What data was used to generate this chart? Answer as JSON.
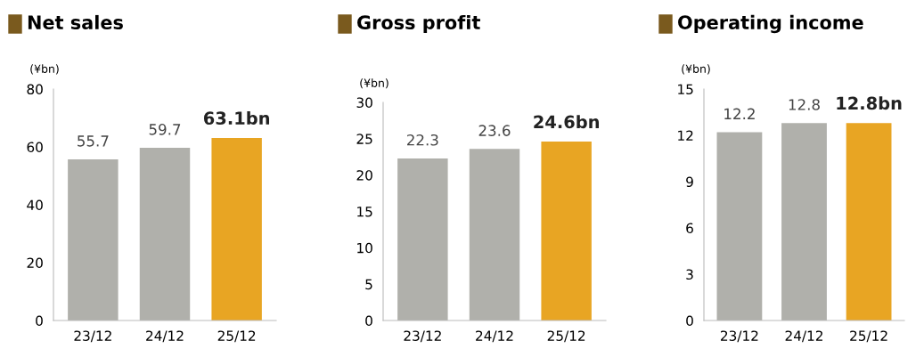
{
  "chart_data": [
    {
      "type": "bar",
      "title": "Net sales",
      "ylabel": "(¥bn)",
      "categories": [
        "23/12",
        "24/12",
        "25/12"
      ],
      "values": [
        55.7,
        59.7,
        63.1
      ],
      "colors": [
        "#b0b0ab",
        "#b0b0ab",
        "#e8a523"
      ],
      "value_labels": [
        "55.7",
        "59.7",
        "63.1bn"
      ],
      "ylim": [
        0,
        80
      ],
      "yticks": [
        0,
        20,
        40,
        60,
        80
      ],
      "grid": false,
      "legend": false
    },
    {
      "type": "bar",
      "title": "Gross profit",
      "ylabel": "(¥bn)",
      "categories": [
        "23/12",
        "24/12",
        "25/12"
      ],
      "values": [
        22.3,
        23.6,
        24.6
      ],
      "colors": [
        "#b0b0ab",
        "#b0b0ab",
        "#e8a523"
      ],
      "value_labels": [
        "22.3",
        "23.6",
        "24.6bn"
      ],
      "ylim": [
        0,
        30
      ],
      "yticks": [
        0,
        5,
        10,
        15,
        20,
        25,
        30
      ],
      "grid": false,
      "legend": false
    },
    {
      "type": "bar",
      "title": "Operating income",
      "ylabel": "(¥bn)",
      "categories": [
        "23/12",
        "24/12",
        "25/12"
      ],
      "values": [
        12.2,
        12.8,
        12.8
      ],
      "colors": [
        "#b0b0ab",
        "#b0b0ab",
        "#e8a523"
      ],
      "value_labels": [
        "12.2",
        "12.8",
        "12.8bn"
      ],
      "ylim": [
        0,
        15
      ],
      "yticks": [
        0,
        3,
        6,
        9,
        12,
        15
      ],
      "grid": false,
      "legend": false
    }
  ]
}
